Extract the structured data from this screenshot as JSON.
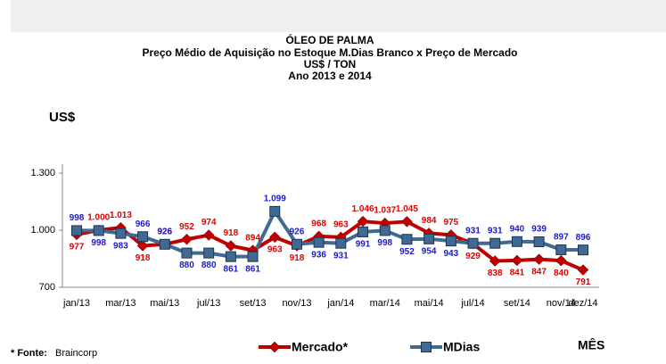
{
  "chart_data": {
    "type": "line",
    "title_lines": [
      "ÓLEO DE PALMA",
      "Preço Médio de Aquisição no Estoque M.Dias Branco x Preço de Mercado",
      "US$ / TON",
      "Ano 2013 e 2014"
    ],
    "y_label": "US$",
    "x_label": "MÊS",
    "source_prefix": "* Fonte:",
    "source": "Braincorp",
    "categories": [
      "jan/13",
      null,
      "mar/13",
      null,
      "mai/13",
      null,
      "jul/13",
      null,
      "set/13",
      null,
      "nov/13",
      null,
      "jan/14",
      null,
      "mar/14",
      null,
      "mai/14",
      null,
      "jul/14",
      null,
      "set/14",
      null,
      "nov/14",
      "dez/14"
    ],
    "ylim": [
      700,
      1300
    ],
    "yticks": [
      {
        "value": 700,
        "label": "700"
      },
      {
        "value": 1000,
        "label": "1.000"
      },
      {
        "value": 1300,
        "label": "1.300"
      }
    ],
    "series": [
      {
        "name": "Mercado*",
        "color": "#c00000",
        "marker": "diamond",
        "values": [
          977,
          1000,
          1013,
          918,
          926,
          952,
          974,
          918,
          894,
          963,
          918,
          968,
          963,
          1046,
          1037,
          1045,
          984,
          975,
          929,
          838,
          841,
          847,
          840,
          791
        ],
        "value_labels": [
          "977",
          "1.000",
          "1.013",
          "918",
          "926",
          "952",
          "974",
          "918",
          "894",
          "963",
          "918",
          "968",
          "963",
          "1.046",
          "1.037",
          "1.045",
          "984",
          "975",
          "929",
          "838",
          "841",
          "847",
          "840",
          "791"
        ]
      },
      {
        "name": "MDias",
        "color": "#3e6a93",
        "marker": "square",
        "values": [
          998,
          998,
          983,
          966,
          926,
          880,
          880,
          861,
          861,
          1099,
          926,
          936,
          931,
          991,
          998,
          952,
          954,
          943,
          931,
          931,
          940,
          939,
          897,
          896
        ],
        "value_labels": [
          "998",
          "998",
          "983",
          "966",
          "926",
          "880",
          "880",
          "861",
          "861",
          "1.099",
          "926",
          "936",
          "931",
          "991",
          "998",
          "952",
          "954",
          "943",
          "931",
          "931",
          "940",
          "939",
          "897",
          "896"
        ]
      }
    ]
  }
}
